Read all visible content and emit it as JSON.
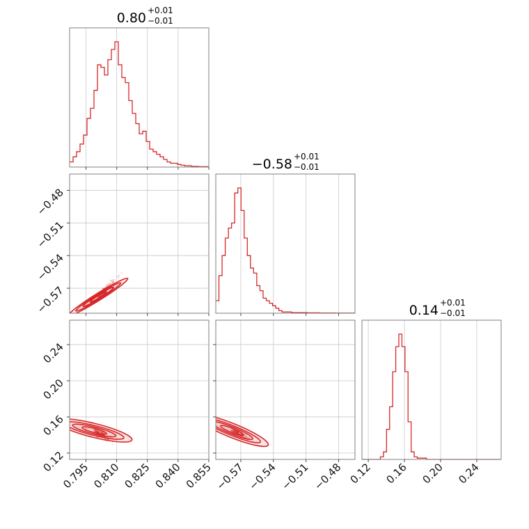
{
  "chart_data": {
    "type": "corner",
    "accent_color": "#d62728",
    "grid": true,
    "parameters": [
      {
        "title_value": "0.80",
        "title_plus": "+0.01",
        "title_minus": "−0.01",
        "range": [
          0.787,
          0.855
        ]
      },
      {
        "title_value": "−0.58",
        "title_plus": "+0.01",
        "title_minus": "−0.01",
        "range": [
          -0.593,
          -0.465
        ]
      },
      {
        "title_value": "0.14",
        "title_plus": "+0.01",
        "title_minus": "−0.01",
        "range": [
          0.113,
          0.267
        ]
      }
    ],
    "x_ticks": [
      {
        "values": [
          0.795,
          0.81,
          0.825,
          0.84,
          0.855
        ],
        "labels": [
          "0.795",
          "0.810",
          "0.825",
          "0.840",
          "0.855"
        ]
      },
      {
        "values": [
          -0.57,
          -0.54,
          -0.51,
          -0.48
        ],
        "labels": [
          "−0.57",
          "−0.54",
          "−0.51",
          "−0.48"
        ]
      },
      {
        "values": [
          0.12,
          0.16,
          0.2,
          0.24
        ],
        "labels": [
          "0.12",
          "0.16",
          "0.20",
          "0.24"
        ]
      }
    ],
    "y_ticks": [
      {
        "row": 1,
        "values": [
          -0.48,
          -0.51,
          -0.54,
          -0.57
        ],
        "labels": [
          "−0.48",
          "−0.51",
          "−0.54",
          "−0.57"
        ]
      },
      {
        "row": 2,
        "values": [
          0.24,
          0.2,
          0.16,
          0.12
        ],
        "labels": [
          "0.24",
          "0.20",
          "0.16",
          "0.12"
        ]
      }
    ],
    "histograms": [
      {
        "param": 0,
        "edges_start": 0.787,
        "bin_width": 0.0017,
        "counts": [
          4,
          8,
          12,
          18,
          25,
          38,
          46,
          60,
          80,
          78,
          72,
          84,
          92,
          98,
          80,
          70,
          66,
          52,
          42,
          34,
          26,
          28,
          20,
          14,
          12,
          10,
          8,
          6,
          4,
          3,
          3,
          2,
          1.5,
          1,
          1,
          0.5,
          0.5,
          0.3,
          0.3,
          0.3
        ]
      },
      {
        "param": 1,
        "edges_start": -0.593,
        "bin_width": 0.0029,
        "counts": [
          10,
          30,
          46,
          60,
          68,
          72,
          96,
          100,
          82,
          60,
          46,
          36,
          32,
          22,
          18,
          12,
          10,
          8,
          6,
          4,
          2,
          1,
          1,
          1,
          0.5,
          0.5,
          0.5,
          0.5,
          0.5,
          0.3,
          0.3,
          0.3,
          0.3,
          0.2,
          0.2,
          0.2,
          0.2,
          0.2,
          0.1,
          0.1,
          0.1,
          0.1,
          0.1,
          0.1
        ]
      },
      {
        "param": 2,
        "edges_start": 0.113,
        "bin_width": 0.0034,
        "counts": [
          0,
          0,
          0,
          0,
          0,
          0,
          2,
          6,
          24,
          42,
          70,
          90,
          100,
          90,
          70,
          30,
          6,
          2,
          1,
          1,
          1,
          0,
          0,
          0,
          0,
          0,
          0,
          0,
          0,
          0,
          0,
          0,
          0,
          0,
          0,
          0,
          0,
          0,
          0,
          0,
          0,
          0,
          0,
          0,
          0
        ]
      }
    ],
    "scatter_2d": [
      {
        "x_param": 0,
        "y_param": 1,
        "slope": 0.8,
        "x_center": 0.801,
        "y_center": -0.578
      },
      {
        "x_param": 0,
        "y_param": 2,
        "slope": -0.6,
        "x_center": 0.799,
        "y_center": 0.145
      },
      {
        "x_param": 1,
        "y_param": 2,
        "slope": -0.6,
        "x_center": -0.578,
        "y_center": 0.145
      }
    ]
  }
}
